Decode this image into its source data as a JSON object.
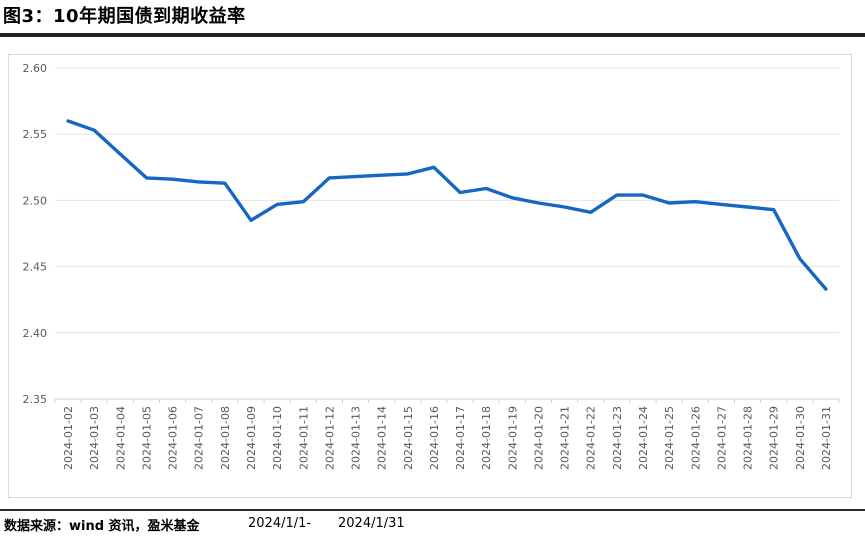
{
  "header": {
    "title": "图3：10年期国债到期收益率"
  },
  "footer": {
    "source": "数据来源：wind 资讯，盈米基金",
    "period_start": "2024/1/1-",
    "period_end": "2024/1/31"
  },
  "chart_data": {
    "type": "line",
    "title": "10年期国债到期收益率",
    "xlabel": "",
    "ylabel": "",
    "ylim": [
      2.35,
      2.6
    ],
    "ytick_labels": [
      "2.35",
      "2.40",
      "2.45",
      "2.50",
      "2.55",
      "2.60"
    ],
    "grid": "horizontal",
    "legend": "none",
    "x": [
      "2024-01-02",
      "2024-01-03",
      "2024-01-04",
      "2024-01-05",
      "2024-01-06",
      "2024-01-07",
      "2024-01-08",
      "2024-01-09",
      "2024-01-10",
      "2024-01-11",
      "2024-01-12",
      "2024-01-13",
      "2024-01-14",
      "2024-01-15",
      "2024-01-16",
      "2024-01-17",
      "2024-01-18",
      "2024-01-19",
      "2024-01-20",
      "2024-01-21",
      "2024-01-22",
      "2024-01-23",
      "2024-01-24",
      "2024-01-25",
      "2024-01-26",
      "2024-01-27",
      "2024-01-28",
      "2024-01-29",
      "2024-01-30",
      "2024-01-31"
    ],
    "series": [
      {
        "name": "10年期国债到期收益率",
        "values": [
          2.56,
          2.553,
          2.535,
          2.517,
          2.516,
          2.514,
          2.513,
          2.485,
          2.497,
          2.499,
          2.517,
          2.518,
          2.519,
          2.52,
          2.525,
          2.506,
          2.509,
          2.502,
          2.498,
          2.495,
          2.491,
          2.504,
          2.504,
          2.498,
          2.499,
          2.497,
          2.495,
          2.493,
          2.456,
          2.433
        ]
      }
    ],
    "colors": {
      "line": "#1567c4",
      "gridline": "#e4e4e4",
      "axis_line": "#cfcfcf",
      "tick_label": "#595959"
    }
  }
}
